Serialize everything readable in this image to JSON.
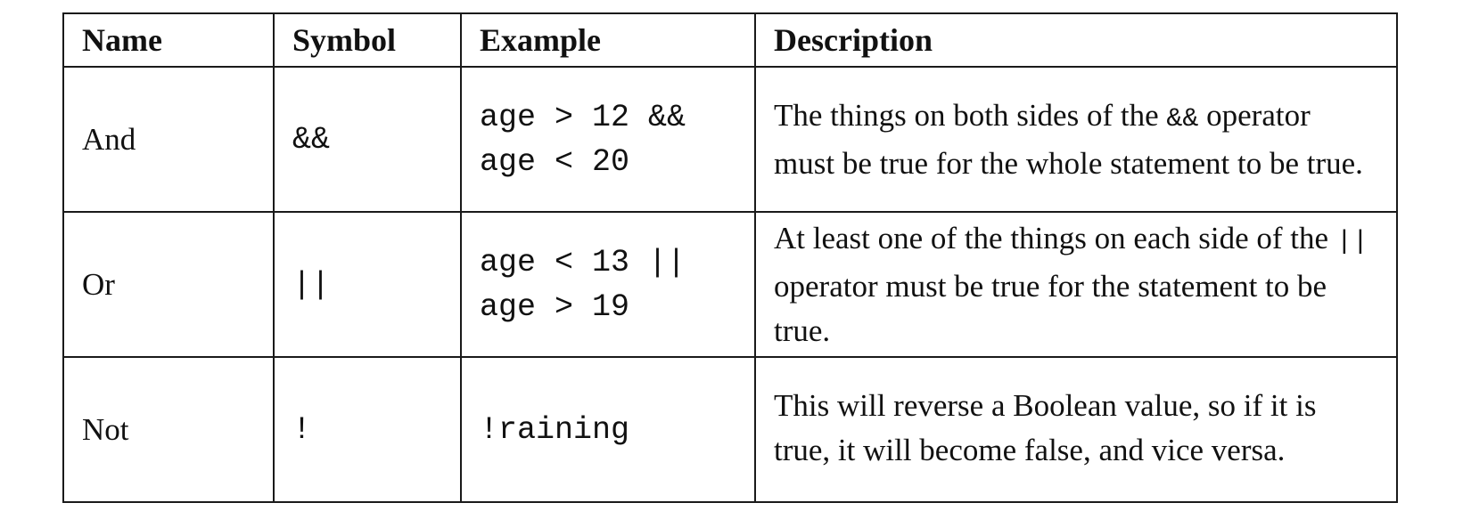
{
  "table": {
    "headers": [
      "Name",
      "Symbol",
      "Example",
      "Description"
    ],
    "rows": [
      {
        "name": "And",
        "symbol": "&&",
        "example_lines": [
          "age > 12 &&",
          "age < 20"
        ],
        "description": {
          "before": "The things on both sides of the ",
          "code": "&&",
          "after": " operator must be true for the whole statement to be true."
        }
      },
      {
        "name": "Or",
        "symbol": "||",
        "example_lines": [
          "age < 13 ||",
          "age > 19"
        ],
        "description": {
          "before": "At least one of the things on each side of the ",
          "code": "||",
          "after": " operator must be true for the statement to be true."
        }
      },
      {
        "name": "Not",
        "symbol": "!",
        "example_lines": [
          "!raining"
        ],
        "description": {
          "before": "This will reverse a Boolean value, so if it is true, it will become false, and vice versa.",
          "code": "",
          "after": ""
        }
      }
    ]
  }
}
